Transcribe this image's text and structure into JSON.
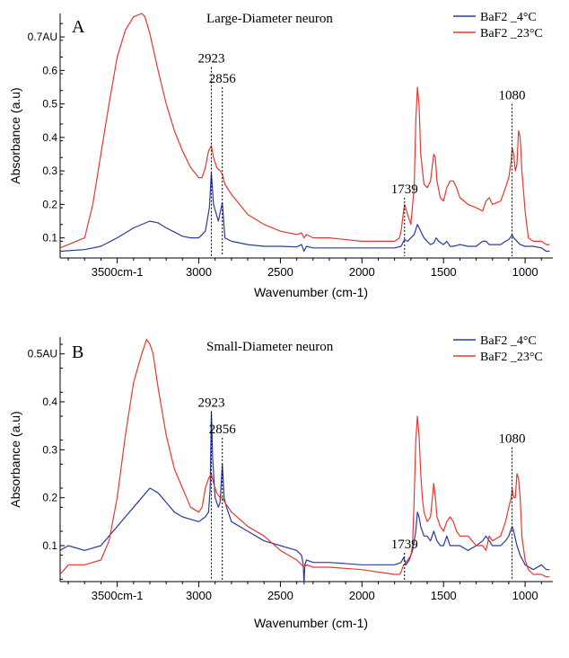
{
  "colors": {
    "blue": "#2b3a9c",
    "red": "#e23a32",
    "axis": "#000000"
  },
  "chart_data": [
    {
      "type": "line",
      "panel_letter": "A",
      "title": "Large-Diameter neuron",
      "xlabel": "Wavenumber (cm-1)",
      "ylabel": "Absorbance (a.u)",
      "xlim": [
        3850,
        830
      ],
      "ylim": [
        0.04,
        0.77
      ],
      "x_reversed": true,
      "x_ticks": [
        3500,
        3000,
        2500,
        2000,
        1500,
        1000
      ],
      "x_tick_labels": [
        "3500cm-1",
        "3000",
        "2500",
        "2000",
        "1500",
        "1000"
      ],
      "y_ticks": [
        0.1,
        0.2,
        0.3,
        0.4,
        0.5,
        0.6,
        0.7
      ],
      "y_tick_labels": [
        "0.1",
        "0.2",
        "0.3",
        "0.4",
        "0.5",
        "0.6",
        "0.7AU"
      ],
      "legend_position": "top-right",
      "annotations": [
        {
          "x": 2923,
          "y_top": 0.61,
          "label": "2923"
        },
        {
          "x": 2856,
          "y_top": 0.55,
          "label": "2856"
        },
        {
          "x": 1739,
          "y_top": 0.22,
          "label": "1739"
        },
        {
          "x": 1080,
          "y_top": 0.5,
          "label": "1080"
        }
      ],
      "series": [
        {
          "name": "BaF2 _4°C",
          "color": "blue",
          "x": [
            3850,
            3700,
            3600,
            3500,
            3400,
            3300,
            3250,
            3200,
            3100,
            3050,
            3000,
            2960,
            2935,
            2923,
            2910,
            2880,
            2856,
            2840,
            2800,
            2700,
            2600,
            2500,
            2400,
            2370,
            2355,
            2340,
            2300,
            2200,
            2000,
            1800,
            1760,
            1745,
            1739,
            1720,
            1700,
            1680,
            1660,
            1640,
            1620,
            1600,
            1580,
            1560,
            1545,
            1530,
            1500,
            1480,
            1460,
            1440,
            1400,
            1350,
            1300,
            1260,
            1240,
            1220,
            1200,
            1150,
            1120,
            1100,
            1085,
            1080,
            1070,
            1050,
            1030,
            1000,
            950,
            900,
            870,
            850
          ],
          "y": [
            0.06,
            0.065,
            0.075,
            0.1,
            0.13,
            0.15,
            0.145,
            0.13,
            0.105,
            0.1,
            0.1,
            0.12,
            0.19,
            0.295,
            0.2,
            0.15,
            0.205,
            0.1,
            0.09,
            0.08,
            0.075,
            0.075,
            0.073,
            0.08,
            0.06,
            0.075,
            0.07,
            0.07,
            0.07,
            0.07,
            0.075,
            0.09,
            0.095,
            0.09,
            0.1,
            0.11,
            0.14,
            0.12,
            0.1,
            0.09,
            0.08,
            0.085,
            0.1,
            0.09,
            0.08,
            0.09,
            0.075,
            0.075,
            0.08,
            0.075,
            0.075,
            0.09,
            0.09,
            0.08,
            0.08,
            0.08,
            0.09,
            0.095,
            0.105,
            0.11,
            0.1,
            0.09,
            0.08,
            0.075,
            0.075,
            0.07,
            0.06,
            0.06
          ]
        },
        {
          "name": "BaF2 _23°C",
          "color": "red",
          "x": [
            3850,
            3700,
            3650,
            3600,
            3550,
            3500,
            3450,
            3400,
            3350,
            3330,
            3300,
            3250,
            3200,
            3150,
            3100,
            3050,
            3000,
            2980,
            2960,
            2940,
            2923,
            2910,
            2890,
            2870,
            2856,
            2840,
            2800,
            2700,
            2600,
            2500,
            2400,
            2370,
            2355,
            2340,
            2300,
            2200,
            2000,
            1800,
            1770,
            1760,
            1745,
            1739,
            1720,
            1700,
            1680,
            1670,
            1660,
            1650,
            1640,
            1620,
            1600,
            1580,
            1560,
            1550,
            1540,
            1520,
            1500,
            1480,
            1460,
            1440,
            1420,
            1400,
            1350,
            1300,
            1260,
            1240,
            1220,
            1200,
            1150,
            1120,
            1100,
            1085,
            1080,
            1070,
            1060,
            1050,
            1040,
            1030,
            1020,
            1000,
            980,
            950,
            900,
            870,
            850
          ],
          "y": [
            0.07,
            0.1,
            0.2,
            0.35,
            0.5,
            0.64,
            0.72,
            0.76,
            0.77,
            0.76,
            0.71,
            0.6,
            0.5,
            0.42,
            0.36,
            0.31,
            0.28,
            0.28,
            0.31,
            0.36,
            0.375,
            0.34,
            0.31,
            0.3,
            0.29,
            0.26,
            0.23,
            0.17,
            0.14,
            0.12,
            0.11,
            0.115,
            0.1,
            0.11,
            0.1,
            0.1,
            0.09,
            0.09,
            0.1,
            0.12,
            0.18,
            0.2,
            0.17,
            0.14,
            0.25,
            0.45,
            0.55,
            0.5,
            0.35,
            0.26,
            0.25,
            0.27,
            0.35,
            0.34,
            0.27,
            0.22,
            0.21,
            0.25,
            0.27,
            0.27,
            0.25,
            0.22,
            0.2,
            0.19,
            0.18,
            0.21,
            0.22,
            0.2,
            0.21,
            0.25,
            0.28,
            0.33,
            0.37,
            0.35,
            0.3,
            0.32,
            0.42,
            0.4,
            0.3,
            0.18,
            0.1,
            0.09,
            0.09,
            0.08,
            0.08
          ]
        }
      ]
    },
    {
      "type": "line",
      "panel_letter": "B",
      "title": "Small-Diameter neuron",
      "xlabel": "Wavenumber (cm-1)",
      "ylabel": "Absorbance (a.u)",
      "xlim": [
        3850,
        830
      ],
      "ylim": [
        0.025,
        0.535
      ],
      "x_reversed": true,
      "x_ticks": [
        3500,
        3000,
        2500,
        2000,
        1500,
        1000
      ],
      "x_tick_labels": [
        "3500cm-1",
        "3000",
        "2500",
        "2000",
        "1500",
        "1000"
      ],
      "y_ticks": [
        0.1,
        0.2,
        0.3,
        0.4,
        0.5
      ],
      "y_tick_labels": [
        "0.1",
        "0.2",
        "0.3",
        "0.4",
        "0.5AU"
      ],
      "legend_position": "top-right",
      "annotations": [
        {
          "x": 2923,
          "y_top": 0.38,
          "label": "2923"
        },
        {
          "x": 2856,
          "y_top": 0.325,
          "label": "2856"
        },
        {
          "x": 1739,
          "y_top": 0.085,
          "label": "1739"
        },
        {
          "x": 1080,
          "y_top": 0.305,
          "label": "1080"
        }
      ],
      "series": [
        {
          "name": "BaF2 _4°C",
          "color": "blue",
          "x": [
            3850,
            3800,
            3700,
            3600,
            3550,
            3500,
            3450,
            3400,
            3350,
            3300,
            3250,
            3200,
            3150,
            3100,
            3050,
            3000,
            2960,
            2940,
            2930,
            2923,
            2915,
            2900,
            2880,
            2870,
            2856,
            2845,
            2830,
            2800,
            2700,
            2600,
            2500,
            2400,
            2370,
            2360,
            2355,
            2350,
            2340,
            2300,
            2200,
            2000,
            1800,
            1760,
            1745,
            1739,
            1730,
            1710,
            1690,
            1670,
            1660,
            1650,
            1640,
            1620,
            1600,
            1580,
            1560,
            1550,
            1540,
            1520,
            1500,
            1480,
            1460,
            1440,
            1400,
            1350,
            1300,
            1260,
            1240,
            1220,
            1200,
            1150,
            1120,
            1100,
            1090,
            1080,
            1070,
            1050,
            1030,
            1000,
            950,
            900,
            870,
            850
          ],
          "y": [
            0.09,
            0.1,
            0.09,
            0.1,
            0.12,
            0.14,
            0.16,
            0.18,
            0.2,
            0.22,
            0.21,
            0.19,
            0.17,
            0.16,
            0.155,
            0.15,
            0.16,
            0.17,
            0.22,
            0.38,
            0.28,
            0.2,
            0.18,
            0.19,
            0.27,
            0.2,
            0.18,
            0.15,
            0.13,
            0.11,
            0.1,
            0.09,
            0.08,
            0.06,
            0.02,
            0.06,
            0.07,
            0.065,
            0.065,
            0.06,
            0.06,
            0.065,
            0.075,
            0.07,
            0.06,
            0.07,
            0.09,
            0.13,
            0.17,
            0.16,
            0.14,
            0.12,
            0.12,
            0.11,
            0.13,
            0.12,
            0.11,
            0.1,
            0.1,
            0.12,
            0.1,
            0.1,
            0.1,
            0.09,
            0.1,
            0.11,
            0.12,
            0.11,
            0.1,
            0.1,
            0.11,
            0.12,
            0.13,
            0.14,
            0.13,
            0.1,
            0.08,
            0.06,
            0.05,
            0.06,
            0.05,
            0.05
          ]
        },
        {
          "name": "BaF2 _23°C",
          "color": "red",
          "x": [
            3850,
            3800,
            3700,
            3600,
            3550,
            3500,
            3450,
            3400,
            3350,
            3320,
            3300,
            3280,
            3250,
            3200,
            3150,
            3100,
            3050,
            3000,
            2980,
            2960,
            2940,
            2923,
            2910,
            2890,
            2870,
            2856,
            2840,
            2800,
            2700,
            2600,
            2500,
            2400,
            2370,
            2355,
            2340,
            2300,
            2200,
            2000,
            1800,
            1770,
            1760,
            1745,
            1739,
            1720,
            1700,
            1690,
            1680,
            1670,
            1660,
            1650,
            1640,
            1630,
            1620,
            1600,
            1580,
            1560,
            1550,
            1540,
            1520,
            1500,
            1480,
            1460,
            1440,
            1420,
            1400,
            1350,
            1300,
            1260,
            1240,
            1220,
            1200,
            1150,
            1120,
            1100,
            1085,
            1080,
            1070,
            1060,
            1050,
            1040,
            1030,
            1020,
            1000,
            980,
            950,
            900,
            870,
            850
          ],
          "y": [
            0.04,
            0.06,
            0.06,
            0.07,
            0.11,
            0.2,
            0.33,
            0.44,
            0.5,
            0.53,
            0.52,
            0.5,
            0.43,
            0.33,
            0.26,
            0.22,
            0.18,
            0.17,
            0.18,
            0.22,
            0.24,
            0.25,
            0.23,
            0.21,
            0.2,
            0.2,
            0.19,
            0.17,
            0.14,
            0.12,
            0.09,
            0.07,
            0.06,
            0.055,
            0.06,
            0.055,
            0.055,
            0.05,
            0.04,
            0.04,
            0.045,
            0.06,
            0.06,
            0.07,
            0.08,
            0.1,
            0.2,
            0.32,
            0.37,
            0.33,
            0.25,
            0.2,
            0.17,
            0.15,
            0.16,
            0.23,
            0.2,
            0.16,
            0.14,
            0.13,
            0.15,
            0.16,
            0.15,
            0.13,
            0.12,
            0.12,
            0.1,
            0.1,
            0.09,
            0.12,
            0.11,
            0.12,
            0.15,
            0.18,
            0.2,
            0.22,
            0.2,
            0.2,
            0.25,
            0.24,
            0.2,
            0.12,
            0.07,
            0.05,
            0.04,
            0.04,
            0.035,
            0.035
          ]
        }
      ]
    }
  ]
}
